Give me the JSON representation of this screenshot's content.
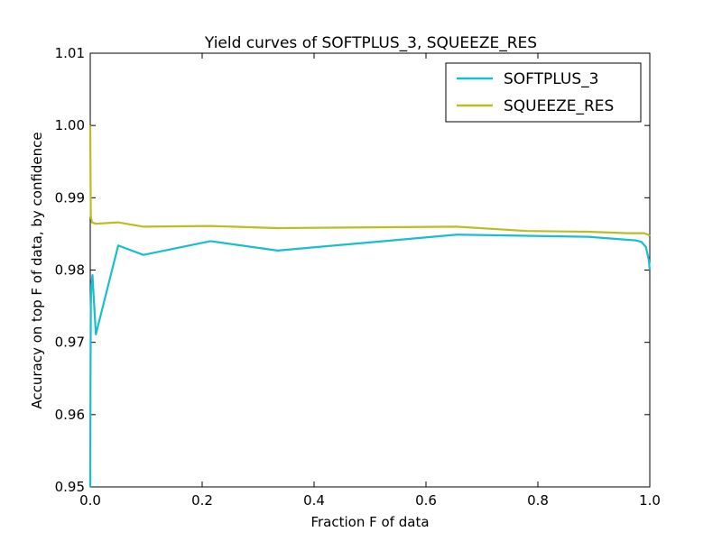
{
  "chart_data": {
    "type": "line",
    "title": "Yield curves of SOFTPLUS_3, SQUEEZE_RES",
    "xlabel": "Fraction F of data",
    "ylabel": "Accuracy on top F of data, by confidence",
    "xlim": [
      0.0,
      1.0
    ],
    "ylim": [
      0.95,
      1.01
    ],
    "xticks": [
      0.0,
      0.2,
      0.4,
      0.6,
      0.8,
      1.0
    ],
    "xtick_labels": [
      "0.0",
      "0.2",
      "0.4",
      "0.6",
      "0.8",
      "1.0"
    ],
    "yticks": [
      0.95,
      0.96,
      0.97,
      0.98,
      0.99,
      1.0,
      1.01
    ],
    "ytick_labels": [
      "0.95",
      "0.96",
      "0.97",
      "0.98",
      "0.99",
      "1.00",
      "1.01"
    ],
    "grid": false,
    "legend_position": "top-right",
    "series": [
      {
        "name": "SOFTPLUS_3",
        "color": "#17becf",
        "x": [
          0.0,
          0.0005,
          0.001,
          0.002,
          0.004,
          0.01,
          0.05,
          0.095,
          0.215,
          0.335,
          0.655,
          0.89,
          0.975,
          0.985,
          0.993,
          0.998,
          1.0
        ],
        "y": [
          0.95,
          0.966,
          0.975,
          0.978,
          0.9793,
          0.9711,
          0.9834,
          0.9821,
          0.984,
          0.9827,
          0.9849,
          0.9846,
          0.9841,
          0.9839,
          0.9832,
          0.9815,
          0.98
        ]
      },
      {
        "name": "SQUEEZE_RES",
        "color": "#bcbd22",
        "x": [
          0.0,
          0.0005,
          0.001,
          0.003,
          0.01,
          0.05,
          0.095,
          0.215,
          0.335,
          0.655,
          0.78,
          0.89,
          0.96,
          0.99,
          0.997,
          1.0
        ],
        "y": [
          1.0,
          0.993,
          0.9875,
          0.9866,
          0.9864,
          0.9866,
          0.986,
          0.9861,
          0.9858,
          0.986,
          0.9854,
          0.9853,
          0.9851,
          0.9851,
          0.9849,
          0.9847
        ]
      }
    ]
  }
}
